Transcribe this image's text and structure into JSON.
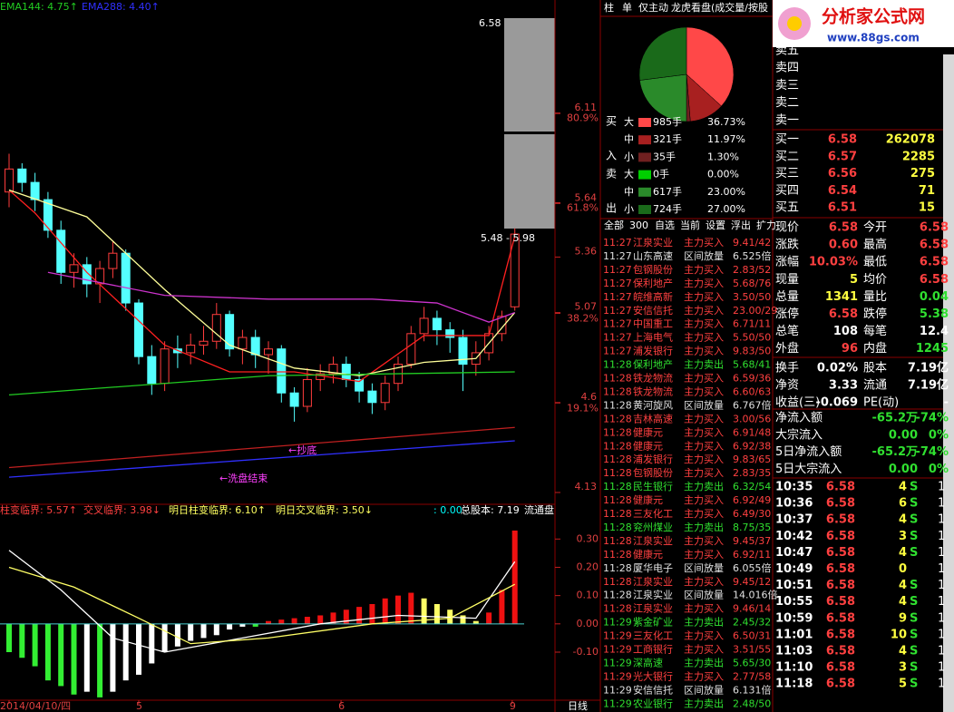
{
  "chart_data": [
    {
      "type": "candlestick",
      "ylim": [
        4.073,
        6.703
      ],
      "yticks": [
        6.11,
        5.64,
        5.36,
        5.07,
        4.6,
        4.13
      ],
      "y2lim": [
        -2.3,
        105.0
      ],
      "y2ticks": [
        {
          "value": 80.9,
          "label": "80.9%"
        },
        {
          "value": 61.8,
          "label": "61.8%"
        },
        {
          "value": 38.2,
          "label": "38.2%"
        },
        {
          "value": 19.1,
          "label": "19.1%"
        }
      ],
      "xticks": [
        {
          "value": 0,
          "label": "2014/04/10/四"
        },
        {
          "value": 10,
          "label": "5"
        },
        {
          "value": 25.6,
          "label": "6"
        },
        {
          "value": 38.8,
          "label": "9"
        }
      ],
      "period": "日线",
      "up_color": "#ff3c3c",
      "down_color": "#54ffff",
      "candles": {
        "open": [
          5.7,
          5.82,
          5.75,
          5.66,
          5.5,
          5.28,
          5.32,
          5.22,
          5.3,
          5.38,
          5.12,
          4.84,
          4.7,
          4.88,
          4.86,
          4.9,
          4.92,
          5.06,
          4.88,
          4.94,
          4.85,
          4.88,
          4.65,
          4.58,
          4.72,
          4.75,
          4.8,
          4.72,
          4.66,
          4.6,
          4.7,
          4.8,
          4.96,
          5.04,
          4.98,
          4.94,
          4.8,
          4.86,
          4.96,
          5.1
        ],
        "high": [
          5.9,
          5.85,
          5.8,
          5.7,
          5.55,
          5.38,
          5.36,
          5.34,
          5.44,
          5.4,
          5.14,
          4.9,
          4.92,
          4.95,
          4.96,
          5.0,
          5.12,
          5.08,
          4.98,
          4.98,
          4.92,
          4.9,
          4.68,
          4.78,
          4.8,
          4.84,
          4.84,
          4.76,
          4.7,
          4.74,
          4.84,
          5.0,
          5.1,
          5.08,
          5.02,
          4.98,
          4.92,
          5.0,
          5.08,
          5.51
        ],
        "low": [
          5.62,
          5.7,
          5.6,
          5.46,
          5.22,
          5.2,
          5.15,
          5.12,
          5.25,
          5.08,
          4.8,
          4.64,
          4.66,
          4.78,
          4.8,
          4.85,
          4.88,
          4.84,
          4.8,
          4.78,
          4.75,
          4.6,
          4.5,
          4.55,
          4.66,
          4.7,
          4.68,
          4.6,
          4.54,
          4.56,
          4.66,
          4.78,
          4.92,
          4.9,
          4.86,
          4.66,
          4.74,
          4.82,
          4.92,
          5.08
        ],
        "close": [
          5.82,
          5.75,
          5.66,
          5.5,
          5.28,
          5.32,
          5.22,
          5.3,
          5.38,
          5.12,
          4.84,
          4.7,
          4.88,
          4.86,
          4.9,
          4.92,
          5.06,
          4.88,
          4.94,
          4.85,
          4.88,
          4.65,
          4.58,
          4.72,
          4.75,
          4.8,
          4.72,
          4.66,
          4.6,
          4.7,
          4.8,
          4.96,
          5.04,
          4.98,
          4.94,
          4.8,
          4.86,
          4.96,
          5.05,
          5.48
        ]
      },
      "series": [
        {
          "color": "#ff2020",
          "x": [
            0,
            2,
            6,
            12,
            17,
            22,
            27,
            32,
            37,
            39
          ],
          "values": [
            5.71,
            5.59,
            5.28,
            4.9,
            4.76,
            4.76,
            4.71,
            4.95,
            4.95,
            5.47
          ]
        },
        {
          "color": "#ffff99",
          "x": [
            0,
            6,
            12,
            17,
            22,
            27,
            32,
            36,
            39
          ],
          "values": [
            5.71,
            5.57,
            5.19,
            4.9,
            4.78,
            4.74,
            4.81,
            4.83,
            5.07
          ]
        },
        {
          "color": "#cc33cc",
          "x": [
            3,
            12,
            20,
            28,
            33,
            37,
            39
          ],
          "values": [
            5.28,
            5.16,
            5.14,
            5.14,
            5.12,
            5.02,
            5.07
          ]
        },
        {
          "name": "EMA144: 4.75↑",
          "color": "#22cc22",
          "x": [
            0,
            20,
            39
          ],
          "values": [
            4.64,
            4.74,
            4.76
          ]
        },
        {
          "color": "#c02020",
          "x": [
            0,
            39
          ],
          "values": [
            4.26,
            4.47
          ]
        },
        {
          "name": "EMA288: 4.40↑",
          "color": "#3030ff",
          "x": [
            0,
            39
          ],
          "values": [
            4.21,
            4.4
          ]
        }
      ],
      "annotations": [
        {
          "text": "6.58",
          "color": "#ffffff"
        },
        {
          "text": "5.48 - 5.98",
          "color": "#ffffff"
        },
        {
          "text": "←抄底",
          "color": "#ff40ff"
        },
        {
          "text": "←洗盘结束",
          "color": "#ff40ff"
        }
      ]
    },
    {
      "type": "macd",
      "ylim": [
        -0.27,
        0.41
      ],
      "yticks": [
        {
          "value": 0.3,
          "label": "0.30"
        },
        {
          "value": 0.2,
          "label": "0.20"
        },
        {
          "value": 0.1,
          "label": "0.10"
        },
        {
          "value": 0.0,
          "label": "0.00"
        },
        {
          "value": -0.1,
          "label": "-0.10"
        }
      ],
      "header": [
        {
          "text": "柱变临界: 5.57↑",
          "color": "#ff4040"
        },
        {
          "text": "交叉临界: 3.98↓",
          "color": "#ff4040"
        },
        {
          "text": "明日柱变临界: 6.10↑",
          "color": "#ffff60"
        },
        {
          "text": "明日交叉临界: 3.50↓",
          "color": "#ffff60"
        },
        {
          "text": ": 0.00",
          "color": "#00ffff"
        },
        {
          "text": "总股本: 7.19",
          "color": "#ffffff"
        },
        {
          "text": "流通盘",
          "color": "#ffffff"
        }
      ],
      "palette": {
        "neg_falling": "#33ee33",
        "neg_rising": "#ffffff",
        "pos_rising": "#ee1111",
        "pos_falling": "#ffff66"
      },
      "values": [
        -0.1,
        -0.12,
        -0.15,
        -0.2,
        -0.22,
        -0.25,
        -0.24,
        -0.26,
        -0.24,
        -0.2,
        -0.18,
        -0.14,
        -0.1,
        -0.08,
        -0.06,
        -0.05,
        -0.04,
        -0.02,
        -0.01,
        -0.01,
        0.01,
        0.015,
        0.02,
        0.025,
        0.03,
        0.04,
        0.05,
        0.06,
        0.07,
        0.09,
        0.1,
        0.11,
        0.09,
        0.07,
        0.05,
        0.03,
        0.01,
        0.04,
        0.12,
        0.33
      ],
      "zero_color": "#4ad0d0",
      "series": [
        {
          "color": "#ffffff",
          "x": [
            0,
            4,
            8,
            12,
            18,
            24,
            30,
            36,
            39
          ],
          "values": [
            0.26,
            0.12,
            -0.05,
            -0.1,
            -0.05,
            0.0,
            0.03,
            0.02,
            0.22
          ]
        },
        {
          "color": "#ffff66",
          "x": [
            0,
            5,
            10,
            14,
            20,
            28,
            34,
            39
          ],
          "values": [
            0.2,
            0.13,
            0.02,
            -0.07,
            -0.05,
            0.0,
            0.02,
            0.14
          ]
        }
      ]
    }
  ],
  "middle_tabs": [
    "柱",
    "单",
    "仅主动",
    "龙虎看盘(成交量/按股"
  ],
  "flow_table": {
    "side_labels": [
      "买",
      "入",
      "卖",
      "出"
    ],
    "rows": [
      {
        "size": "大",
        "color": "#ff4848",
        "volume": "985手",
        "pct": 36.73,
        "pct_label": "36.73%"
      },
      {
        "size": "中",
        "color": "#a82020",
        "volume": "321手",
        "pct": 11.97,
        "pct_label": "11.97%"
      },
      {
        "size": "小",
        "color": "#702020",
        "volume": "35手",
        "pct": 1.3,
        "pct_label": "1.30%"
      },
      {
        "size": "大",
        "color": "#00d000",
        "volume": "0手",
        "pct": 0.0,
        "pct_label": "0.00%"
      },
      {
        "size": "中",
        "color": "#2a8a2a",
        "volume": "617手",
        "pct": 23.0,
        "pct_label": "23.00%"
      },
      {
        "size": "小",
        "color": "#1a6a1a",
        "volume": "724手",
        "pct": 27.0,
        "pct_label": "27.00%"
      }
    ]
  },
  "trade_list": {
    "tabs": [
      "全部",
      "300",
      "自选",
      "当前",
      "设置",
      "浮出",
      "扩力"
    ],
    "rows": [
      {
        "time": "11:27",
        "name": "江泉实业",
        "kind": "主力买入",
        "info": "9.41/42",
        "color": "#ff4040"
      },
      {
        "time": "11:27",
        "name": "山东高速",
        "kind": "区间放量",
        "info": "6.525倍",
        "color": "#e0e0e0"
      },
      {
        "time": "11:27",
        "name": "包钢股份",
        "kind": "主力买入",
        "info": "2.83/52",
        "color": "#ff4040"
      },
      {
        "time": "11:27",
        "name": "保利地产",
        "kind": "主力买入",
        "info": "5.68/76",
        "color": "#ff4040"
      },
      {
        "time": "11:27",
        "name": "皖维高新",
        "kind": "主力买入",
        "info": "3.50/50",
        "color": "#ff4040"
      },
      {
        "time": "11:27",
        "name": "安信信托",
        "kind": "主力买入",
        "info": "23.00/29",
        "color": "#ff4040"
      },
      {
        "time": "11:27",
        "name": "中国重工",
        "kind": "主力买入",
        "info": "6.71/11",
        "color": "#ff4040"
      },
      {
        "time": "11:27",
        "name": "上海电气",
        "kind": "主力买入",
        "info": "5.50/50",
        "color": "#ff4040"
      },
      {
        "time": "11:27",
        "name": "浦发银行",
        "kind": "主力买入",
        "info": "9.83/50",
        "color": "#ff4040"
      },
      {
        "time": "11:28",
        "name": "保利地产",
        "kind": "主力卖出",
        "info": "5.68/41",
        "color": "#30e030"
      },
      {
        "time": "11:28",
        "name": "铁龙物流",
        "kind": "主力买入",
        "info": "6.59/36",
        "color": "#ff4040"
      },
      {
        "time": "11:28",
        "name": "铁龙物流",
        "kind": "主力买入",
        "info": "6.60/63",
        "color": "#ff4040"
      },
      {
        "time": "11:28",
        "name": "黄河旋风",
        "kind": "区间放量",
        "info": "6.767倍",
        "color": "#e0e0e0"
      },
      {
        "time": "11:28",
        "name": "吉林高速",
        "kind": "主力买入",
        "info": "3.00/56",
        "color": "#ff4040"
      },
      {
        "time": "11:28",
        "name": "健康元",
        "kind": "主力买入",
        "info": "6.91/48",
        "color": "#ff4040"
      },
      {
        "time": "11:28",
        "name": "健康元",
        "kind": "主力买入",
        "info": "6.92/38",
        "color": "#ff4040"
      },
      {
        "time": "11:28",
        "name": "浦发银行",
        "kind": "主力买入",
        "info": "9.83/65",
        "color": "#ff4040"
      },
      {
        "time": "11:28",
        "name": "包钢股份",
        "kind": "主力买入",
        "info": "2.83/35",
        "color": "#ff4040"
      },
      {
        "time": "11:28",
        "name": "民生银行",
        "kind": "主力卖出",
        "info": "6.32/54",
        "color": "#30e030"
      },
      {
        "time": "11:28",
        "name": "健康元",
        "kind": "主力买入",
        "info": "6.92/49",
        "color": "#ff4040"
      },
      {
        "time": "11:28",
        "name": "三友化工",
        "kind": "主力买入",
        "info": "6.49/30",
        "color": "#ff4040"
      },
      {
        "time": "11:28",
        "name": "兖州煤业",
        "kind": "主力卖出",
        "info": "8.75/35",
        "color": "#30e030"
      },
      {
        "time": "11:28",
        "name": "江泉实业",
        "kind": "主力买入",
        "info": "9.45/37",
        "color": "#ff4040"
      },
      {
        "time": "11:28",
        "name": "健康元",
        "kind": "主力买入",
        "info": "6.92/11",
        "color": "#ff4040"
      },
      {
        "time": "11:28",
        "name": "厦华电子",
        "kind": "区间放量",
        "info": "6.055倍",
        "color": "#e0e0e0"
      },
      {
        "time": "11:28",
        "name": "江泉实业",
        "kind": "主力买入",
        "info": "9.45/12",
        "color": "#ff4040"
      },
      {
        "time": "11:28",
        "name": "江泉实业",
        "kind": "区间放量",
        "info": "14.016倍",
        "color": "#e0e0e0"
      },
      {
        "time": "11:28",
        "name": "江泉实业",
        "kind": "主力买入",
        "info": "9.46/14",
        "color": "#ff4040"
      },
      {
        "time": "11:29",
        "name": "紫金矿业",
        "kind": "主力卖出",
        "info": "2.45/32",
        "color": "#30e030"
      },
      {
        "time": "11:29",
        "name": "三友化工",
        "kind": "主力买入",
        "info": "6.50/31",
        "color": "#ff4040"
      },
      {
        "time": "11:29",
        "name": "工商银行",
        "kind": "主力买入",
        "info": "3.51/55",
        "color": "#ff4040"
      },
      {
        "time": "11:29",
        "name": "深高速",
        "kind": "主力卖出",
        "info": "5.65/30",
        "color": "#30e030"
      },
      {
        "time": "11:29",
        "name": "光大银行",
        "kind": "主力买入",
        "info": "2.77/58",
        "color": "#ff4040"
      },
      {
        "time": "11:29",
        "name": "安信信托",
        "kind": "区间放量",
        "info": "6.131倍",
        "color": "#e0e0e0"
      },
      {
        "time": "11:29",
        "name": "农业银行",
        "kind": "主力卖出",
        "info": "2.48/50",
        "color": "#30e030"
      }
    ]
  },
  "logo": {
    "title": "分析家公式网",
    "url": "www.88gs.com"
  },
  "order_book": {
    "sell": [
      "卖五",
      "卖四",
      "卖三",
      "卖二",
      "卖一"
    ],
    "buy": [
      {
        "label": "买一",
        "price": "6.58",
        "volume": "262078"
      },
      {
        "label": "买二",
        "price": "6.57",
        "volume": "2285"
      },
      {
        "label": "买三",
        "price": "6.56",
        "volume": "275"
      },
      {
        "label": "买四",
        "price": "6.54",
        "volume": "71"
      },
      {
        "label": "买五",
        "price": "6.51",
        "volume": "15"
      }
    ]
  },
  "quote": [
    {
      "cells": [
        "现价",
        "6.58",
        "今开",
        "6.58"
      ],
      "colors": [
        "#ff4040",
        "#ff4040"
      ]
    },
    {
      "cells": [
        "涨跌",
        "0.60",
        "最高",
        "6.58"
      ],
      "colors": [
        "#ff4040",
        "#ff4040"
      ]
    },
    {
      "cells": [
        "涨幅",
        "10.03%",
        "最低",
        "6.58"
      ],
      "colors": [
        "#ff4040",
        "#ff4040"
      ]
    },
    {
      "cells": [
        "现量",
        "5",
        "均价",
        "6.58"
      ],
      "colors": [
        "#ffff40",
        "#ff4040"
      ]
    },
    {
      "cells": [
        "总量",
        "1341",
        "量比",
        "0.04"
      ],
      "colors": [
        "#ffff40",
        "#30e030"
      ]
    },
    {
      "cells": [
        "涨停",
        "6.58",
        "跌停",
        "5.38"
      ],
      "colors": [
        "#ff4040",
        "#30e030"
      ]
    },
    {
      "cells": [
        "总笔",
        "108",
        "每笔",
        "12.4"
      ],
      "colors": [
        "#ffffff",
        "#ffffff"
      ]
    },
    {
      "cells": [
        "外盘",
        "96",
        "内盘",
        "1245"
      ],
      "colors": [
        "#ff4040",
        "#30e030"
      ]
    },
    {
      "cells": [
        "换手",
        "0.02%",
        "股本",
        "7.19亿"
      ],
      "colors": [
        "#ffffff",
        "#ffffff"
      ]
    },
    {
      "cells": [
        "净资",
        "3.33",
        "流通",
        "7.19亿"
      ],
      "colors": [
        "#ffffff",
        "#ffffff"
      ]
    },
    {
      "cells": [
        "收益(三)",
        "-0.069",
        "PE(动)",
        "-"
      ],
      "colors": [
        "#ffffff",
        "#ffffff"
      ]
    }
  ],
  "money_flow": [
    {
      "label": "净流入额",
      "value": "-65.2万",
      "pct": "-74%"
    },
    {
      "label": "大宗流入",
      "value": "0.00",
      "pct": "0%"
    },
    {
      "label": "5日净流入额",
      "value": "-65.2万",
      "pct": "-74%"
    },
    {
      "label": "5日大宗流入",
      "value": "0.00",
      "pct": "0%"
    }
  ],
  "ticks": [
    {
      "time": "10:35",
      "price": "6.58",
      "vol": "4",
      "side": "S",
      "n": "1"
    },
    {
      "time": "10:36",
      "price": "6.58",
      "vol": "6",
      "side": "S",
      "n": "1"
    },
    {
      "time": "10:37",
      "price": "6.58",
      "vol": "4",
      "side": "S",
      "n": "1"
    },
    {
      "time": "10:42",
      "price": "6.58",
      "vol": "3",
      "side": "S",
      "n": "1"
    },
    {
      "time": "10:47",
      "price": "6.58",
      "vol": "4",
      "side": "S",
      "n": "1"
    },
    {
      "time": "10:49",
      "price": "6.58",
      "vol": "0",
      "n": "1"
    },
    {
      "time": "10:51",
      "price": "6.58",
      "vol": "4",
      "side": "S",
      "n": "1"
    },
    {
      "time": "10:55",
      "price": "6.58",
      "vol": "4",
      "side": "S",
      "n": "1"
    },
    {
      "time": "10:59",
      "price": "6.58",
      "vol": "9",
      "side": "S",
      "n": "1"
    },
    {
      "time": "11:01",
      "price": "6.58",
      "vol": "10",
      "side": "S",
      "n": "1"
    },
    {
      "time": "11:03",
      "price": "6.58",
      "vol": "4",
      "side": "S",
      "n": "1"
    },
    {
      "time": "11:10",
      "price": "6.58",
      "vol": "3",
      "side": "S",
      "n": "1"
    },
    {
      "time": "11:18",
      "price": "6.58",
      "vol": "5",
      "side": "S",
      "n": "1"
    }
  ]
}
